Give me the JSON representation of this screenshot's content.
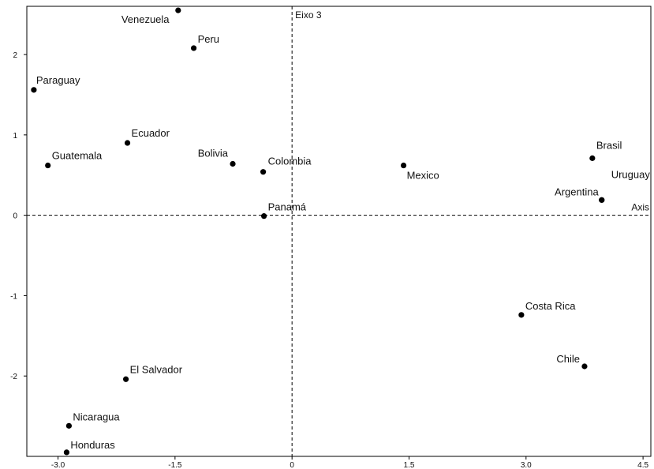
{
  "chart_data": {
    "type": "scatter",
    "title": "",
    "xlabel": "",
    "ylabel": "",
    "xlim": [
      -3.4,
      4.6
    ],
    "ylim": [
      -3.0,
      2.6
    ],
    "xticks": [
      -3.0,
      -1.5,
      0,
      1.5,
      3.0,
      4.5
    ],
    "xtick_labels": [
      "-3.0",
      "-1.5",
      "0",
      "1.5",
      "3.0",
      "4.5"
    ],
    "yticks": [
      -2,
      -1,
      0,
      1,
      2
    ],
    "ytick_labels": [
      "-2",
      "-1",
      "0",
      "1",
      "2"
    ],
    "grid": false,
    "reference_lines": {
      "horizontal_y": 0,
      "vertical_x": 0,
      "vertical_label": "Eixo 3",
      "horizontal_label": "Axis"
    },
    "points": [
      {
        "name": "Venezuela",
        "x": -1.46,
        "y": 2.55
      },
      {
        "name": "Peru",
        "x": -1.26,
        "y": 2.08
      },
      {
        "name": "Paraguay",
        "x": -3.31,
        "y": 1.56
      },
      {
        "name": "Ecuador",
        "x": -2.11,
        "y": 0.9
      },
      {
        "name": "Guatemala",
        "x": -3.13,
        "y": 0.62
      },
      {
        "name": "Bolivia",
        "x": -0.76,
        "y": 0.64
      },
      {
        "name": "Colombia",
        "x": -0.37,
        "y": 0.54
      },
      {
        "name": "Mexico",
        "x": 1.43,
        "y": 0.62
      },
      {
        "name": "Brasil",
        "x": 3.85,
        "y": 0.71
      },
      {
        "name": "Uruguay",
        "x": 3.97,
        "y": 0.19
      },
      {
        "name": "Argentina",
        "x": 3.97,
        "y": 0.19
      },
      {
        "name": "Panamá",
        "x": -0.36,
        "y": -0.01
      },
      {
        "name": "Costa Rica",
        "x": 2.94,
        "y": -1.24
      },
      {
        "name": "Chile",
        "x": 3.75,
        "y": -1.88
      },
      {
        "name": "El Salvador",
        "x": -2.13,
        "y": -2.04
      },
      {
        "name": "Nicaragua",
        "x": -2.86,
        "y": -2.62
      },
      {
        "name": "Honduras",
        "x": -2.89,
        "y": -2.95
      }
    ]
  }
}
